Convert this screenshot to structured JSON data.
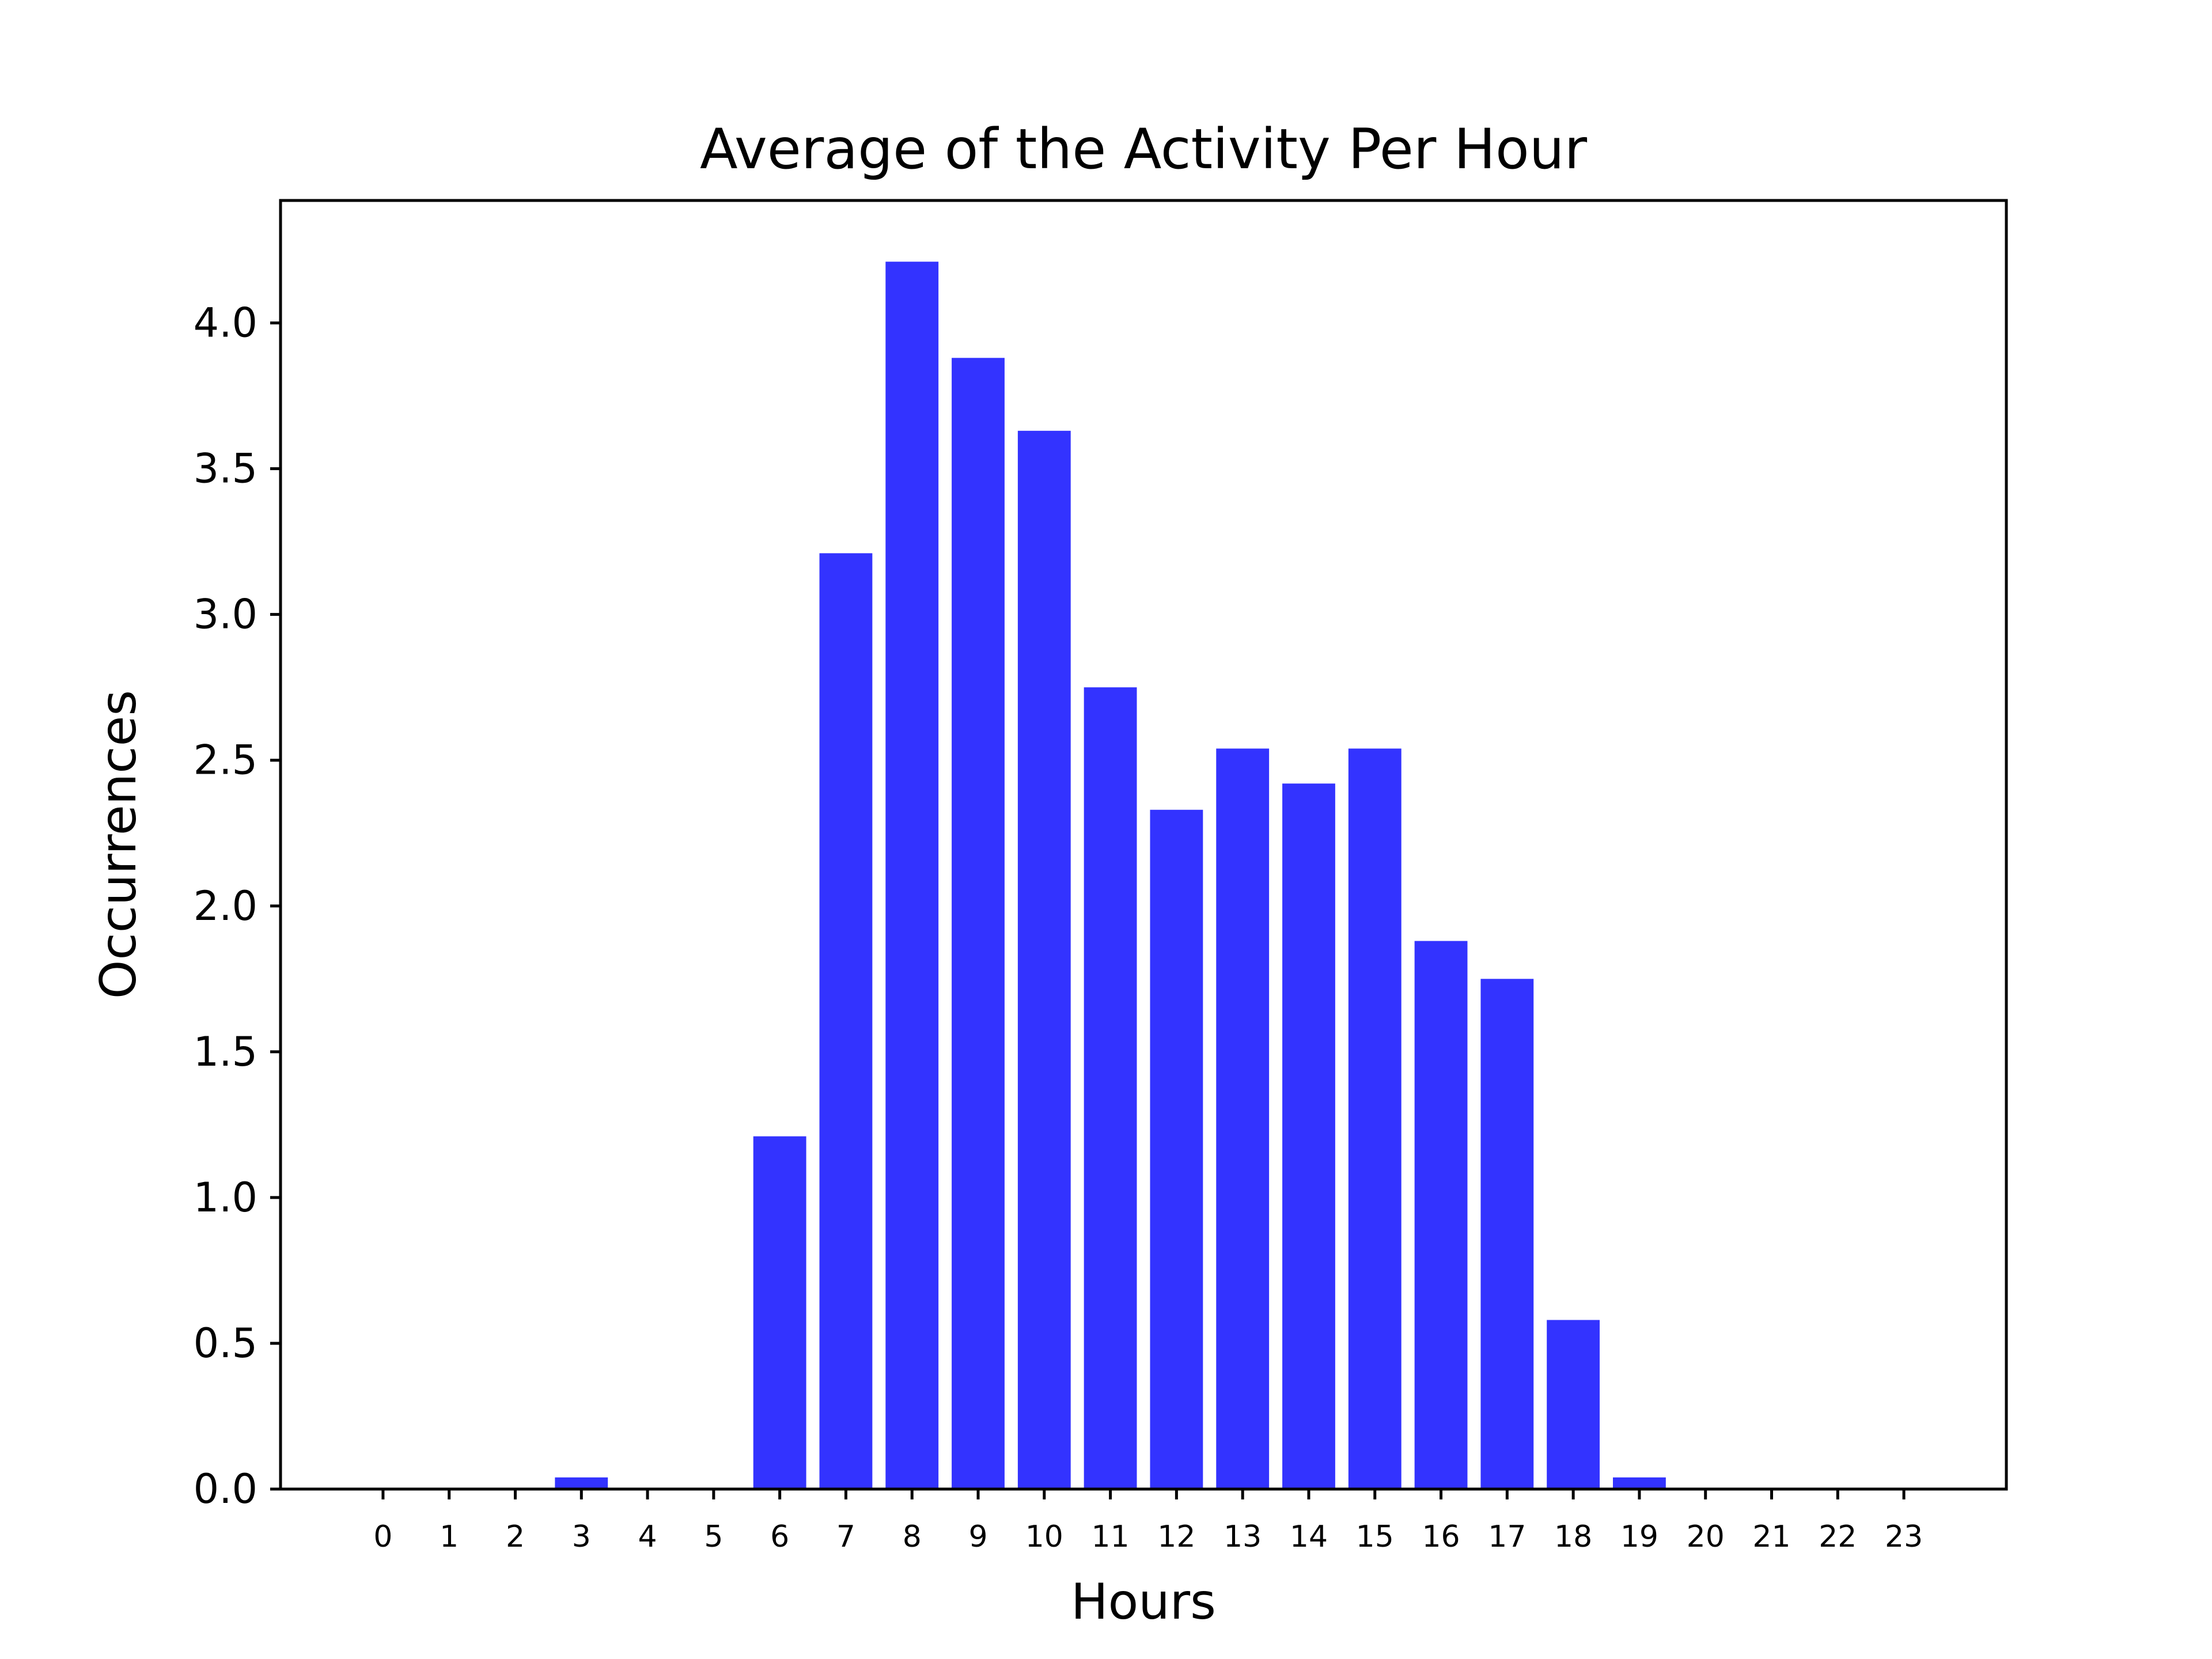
{
  "chart_data": {
    "type": "bar",
    "title": "Average of the Activity Per Hour",
    "xlabel": "Hours",
    "ylabel": "Occurrences",
    "categories": [
      "0",
      "1",
      "2",
      "3",
      "4",
      "5",
      "6",
      "7",
      "8",
      "9",
      "10",
      "11",
      "12",
      "13",
      "14",
      "15",
      "16",
      "17",
      "18",
      "19",
      "20",
      "21",
      "22",
      "23"
    ],
    "values": [
      0,
      0,
      0,
      0.04,
      0,
      0,
      1.21,
      3.21,
      4.21,
      3.88,
      3.63,
      2.75,
      2.33,
      2.54,
      2.42,
      2.54,
      1.88,
      1.75,
      0.58,
      0.04,
      0,
      0,
      0,
      0
    ],
    "y_ticks": [
      "0.0",
      "0.5",
      "1.0",
      "1.5",
      "2.0",
      "2.5",
      "3.0",
      "3.5",
      "4.0"
    ],
    "y_tick_values": [
      0,
      0.5,
      1.0,
      1.5,
      2.0,
      2.5,
      3.0,
      3.5,
      4.0
    ],
    "ylim": [
      0,
      4.42
    ],
    "xlim": [
      -1.55,
      24.55
    ],
    "grid": false,
    "bar_color": "#3333ff"
  }
}
